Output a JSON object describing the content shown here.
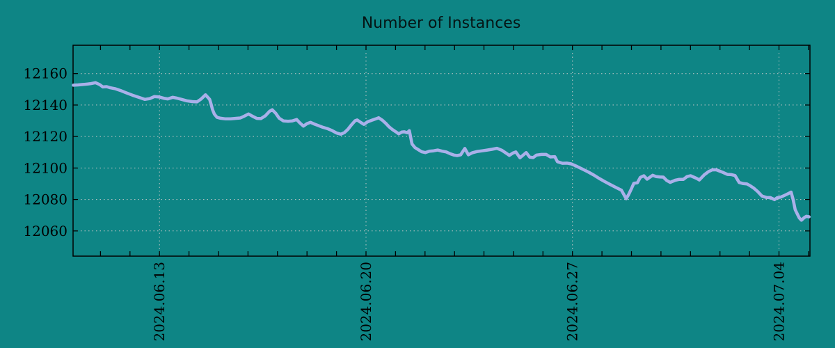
{
  "page": {
    "background_color": "#0e8585",
    "grid_color": "#c8c8c8",
    "axis_color": "#000000",
    "text_color": "#000000"
  },
  "chart_data": {
    "type": "line",
    "title": "Number of Instances",
    "legend": "none",
    "grid": "dotted",
    "x_axis": {
      "unit": "date",
      "start_date": "2024-06-10",
      "domain_days": [
        0.07,
        25.05
      ],
      "minor_tick_every_days": 1,
      "major_ticks": [
        {
          "day": 3,
          "label": "2024.06.13"
        },
        {
          "day": 10,
          "label": "2024.06.20"
        },
        {
          "day": 17,
          "label": "2024.06.27"
        },
        {
          "day": 24,
          "label": "2024.07.04"
        }
      ]
    },
    "y_axis": {
      "domain": [
        12044,
        12178
      ],
      "ticks": [
        12060,
        12080,
        12100,
        12120,
        12140,
        12160
      ]
    },
    "series": [
      {
        "name": "instances",
        "color": "#a9b0e9",
        "points": [
          [
            0.08,
            12152.6
          ],
          [
            0.24,
            12152.8
          ],
          [
            0.43,
            12153.1
          ],
          [
            0.67,
            12153.6
          ],
          [
            0.83,
            12154.2
          ],
          [
            0.97,
            12153.0
          ],
          [
            1.08,
            12151.5
          ],
          [
            1.21,
            12151.7
          ],
          [
            1.33,
            12151.0
          ],
          [
            1.51,
            12150.3
          ],
          [
            1.68,
            12149.2
          ],
          [
            1.84,
            12148.0
          ],
          [
            2.08,
            12146.3
          ],
          [
            2.32,
            12144.8
          ],
          [
            2.5,
            12143.6
          ],
          [
            2.67,
            12144.1
          ],
          [
            2.83,
            12145.4
          ],
          [
            3.0,
            12145.1
          ],
          [
            3.17,
            12144.2
          ],
          [
            3.28,
            12143.9
          ],
          [
            3.45,
            12144.9
          ],
          [
            3.59,
            12144.4
          ],
          [
            3.75,
            12143.6
          ],
          [
            3.92,
            12142.7
          ],
          [
            4.11,
            12142.2
          ],
          [
            4.27,
            12142.0
          ],
          [
            4.41,
            12143.8
          ],
          [
            4.56,
            12146.5
          ],
          [
            4.7,
            12143.6
          ],
          [
            4.75,
            12140.5
          ],
          [
            4.8,
            12137.0
          ],
          [
            4.86,
            12134.2
          ],
          [
            4.95,
            12132.2
          ],
          [
            5.07,
            12131.6
          ],
          [
            5.24,
            12131.2
          ],
          [
            5.41,
            12131.2
          ],
          [
            5.57,
            12131.5
          ],
          [
            5.74,
            12131.8
          ],
          [
            5.88,
            12133.0
          ],
          [
            6.02,
            12134.3
          ],
          [
            6.16,
            12132.8
          ],
          [
            6.3,
            12131.5
          ],
          [
            6.44,
            12131.4
          ],
          [
            6.59,
            12133.2
          ],
          [
            6.73,
            12136.0
          ],
          [
            6.82,
            12137.0
          ],
          [
            6.94,
            12134.8
          ],
          [
            7.06,
            12131.6
          ],
          [
            7.2,
            12129.9
          ],
          [
            7.36,
            12129.7
          ],
          [
            7.5,
            12129.9
          ],
          [
            7.65,
            12130.8
          ],
          [
            7.76,
            12128.6
          ],
          [
            7.88,
            12126.6
          ],
          [
            8.0,
            12128.2
          ],
          [
            8.12,
            12129.0
          ],
          [
            8.24,
            12128.0
          ],
          [
            8.38,
            12127.0
          ],
          [
            8.52,
            12126.0
          ],
          [
            8.68,
            12125.1
          ],
          [
            8.85,
            12123.8
          ],
          [
            9.01,
            12122.2
          ],
          [
            9.15,
            12121.5
          ],
          [
            9.27,
            12122.5
          ],
          [
            9.39,
            12124.6
          ],
          [
            9.51,
            12127.5
          ],
          [
            9.63,
            12130.0
          ],
          [
            9.7,
            12130.5
          ],
          [
            9.82,
            12129.0
          ],
          [
            9.93,
            12127.7
          ],
          [
            10.05,
            12129.3
          ],
          [
            10.19,
            12130.3
          ],
          [
            10.33,
            12131.2
          ],
          [
            10.43,
            12131.9
          ],
          [
            10.55,
            12130.4
          ],
          [
            10.67,
            12128.4
          ],
          [
            10.78,
            12126.2
          ],
          [
            10.9,
            12124.4
          ],
          [
            11.02,
            12122.9
          ],
          [
            11.11,
            12121.7
          ],
          [
            11.21,
            12122.8
          ],
          [
            11.3,
            12123.0
          ],
          [
            11.4,
            12122.4
          ],
          [
            11.47,
            12123.7
          ],
          [
            11.56,
            12115.3
          ],
          [
            11.66,
            12113.0
          ],
          [
            11.77,
            12111.7
          ],
          [
            11.89,
            12110.3
          ],
          [
            12.01,
            12109.8
          ],
          [
            12.15,
            12110.7
          ],
          [
            12.29,
            12110.9
          ],
          [
            12.43,
            12111.4
          ],
          [
            12.58,
            12110.7
          ],
          [
            12.72,
            12110.2
          ],
          [
            12.86,
            12109.0
          ],
          [
            12.98,
            12108.2
          ],
          [
            13.09,
            12107.9
          ],
          [
            13.21,
            12108.4
          ],
          [
            13.35,
            12112.4
          ],
          [
            13.47,
            12108.4
          ],
          [
            13.61,
            12109.7
          ],
          [
            13.78,
            12110.5
          ],
          [
            13.94,
            12110.9
          ],
          [
            14.11,
            12111.4
          ],
          [
            14.27,
            12111.9
          ],
          [
            14.44,
            12112.5
          ],
          [
            14.6,
            12111.3
          ],
          [
            14.77,
            12109.2
          ],
          [
            14.86,
            12108.0
          ],
          [
            14.98,
            12109.5
          ],
          [
            15.08,
            12110.2
          ],
          [
            15.22,
            12106.5
          ],
          [
            15.33,
            12108.2
          ],
          [
            15.43,
            12109.8
          ],
          [
            15.55,
            12106.9
          ],
          [
            15.67,
            12106.6
          ],
          [
            15.78,
            12108.2
          ],
          [
            15.95,
            12108.6
          ],
          [
            16.11,
            12108.6
          ],
          [
            16.25,
            12107.0
          ],
          [
            16.4,
            12107.2
          ],
          [
            16.49,
            12104.0
          ],
          [
            16.66,
            12103.0
          ],
          [
            16.82,
            12103.1
          ],
          [
            16.96,
            12102.6
          ],
          [
            17.15,
            12101.0
          ],
          [
            17.34,
            12099.3
          ],
          [
            17.53,
            12097.5
          ],
          [
            17.72,
            12095.5
          ],
          [
            17.91,
            12093.3
          ],
          [
            18.09,
            12091.4
          ],
          [
            18.28,
            12089.5
          ],
          [
            18.47,
            12087.7
          ],
          [
            18.66,
            12085.9
          ],
          [
            18.82,
            12080.5
          ],
          [
            18.9,
            12083.0
          ],
          [
            18.99,
            12086.5
          ],
          [
            19.08,
            12090.3
          ],
          [
            19.2,
            12090.6
          ],
          [
            19.3,
            12094.0
          ],
          [
            19.42,
            12095.1
          ],
          [
            19.53,
            12092.9
          ],
          [
            19.72,
            12095.4
          ],
          [
            19.84,
            12094.5
          ],
          [
            19.96,
            12094.3
          ],
          [
            20.08,
            12094.2
          ],
          [
            20.19,
            12092.1
          ],
          [
            20.31,
            12090.9
          ],
          [
            20.48,
            12092.2
          ],
          [
            20.62,
            12092.8
          ],
          [
            20.76,
            12092.8
          ],
          [
            20.88,
            12094.5
          ],
          [
            21.0,
            12095.1
          ],
          [
            21.11,
            12094.2
          ],
          [
            21.21,
            12093.4
          ],
          [
            21.3,
            12092.4
          ],
          [
            21.47,
            12095.7
          ],
          [
            21.61,
            12097.7
          ],
          [
            21.73,
            12098.8
          ],
          [
            21.87,
            12098.9
          ],
          [
            21.99,
            12098.0
          ],
          [
            22.1,
            12097.2
          ],
          [
            22.25,
            12095.9
          ],
          [
            22.39,
            12095.8
          ],
          [
            22.51,
            12095.2
          ],
          [
            22.65,
            12090.8
          ],
          [
            22.79,
            12090.1
          ],
          [
            22.91,
            12089.9
          ],
          [
            23.02,
            12088.8
          ],
          [
            23.14,
            12087.3
          ],
          [
            23.28,
            12085.0
          ],
          [
            23.42,
            12082.2
          ],
          [
            23.57,
            12081.3
          ],
          [
            23.71,
            12081.2
          ],
          [
            23.85,
            12079.9
          ],
          [
            23.94,
            12081.1
          ],
          [
            24.06,
            12081.5
          ],
          [
            24.2,
            12082.7
          ],
          [
            24.34,
            12084.0
          ],
          [
            24.41,
            12084.7
          ],
          [
            24.48,
            12080.0
          ],
          [
            24.55,
            12073.5
          ],
          [
            24.62,
            12070.8
          ],
          [
            24.69,
            12068.3
          ],
          [
            24.76,
            12066.8
          ],
          [
            24.86,
            12068.5
          ],
          [
            24.93,
            12069.3
          ],
          [
            25.02,
            12069.0
          ]
        ]
      }
    ]
  }
}
